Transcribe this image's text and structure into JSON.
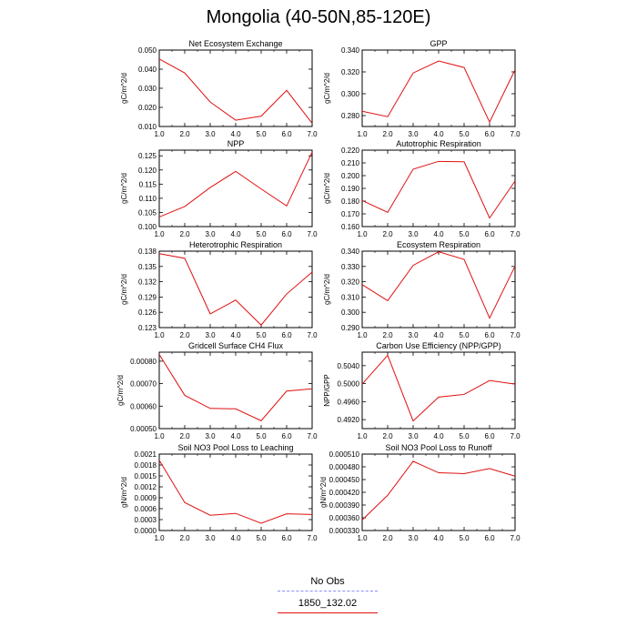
{
  "title": "Mongolia (40-50N,85-120E)",
  "legend": {
    "entries": [
      {
        "label": "No Obs",
        "color": "#8c8cff",
        "style": "dashed"
      },
      {
        "label": "1850_132.02",
        "color": "#e01010",
        "style": "solid"
      }
    ]
  },
  "chart_data": [
    {
      "type": "line",
      "title": "Net Ecosystem Exchange",
      "ylabel": "gC/m^2/d",
      "x": [
        1,
        2,
        3,
        4,
        5,
        6,
        7
      ],
      "xlim": [
        1,
        7
      ],
      "xticks": [
        "1.0",
        "2.0",
        "3.0",
        "4.0",
        "5.0",
        "6.0",
        "7.0"
      ],
      "ylim": [
        0.01,
        0.05
      ],
      "yticks": [
        "0.010",
        "0.020",
        "0.030",
        "0.040",
        "0.050"
      ],
      "ytick_values": [
        0.01,
        0.02,
        0.03,
        0.04,
        0.05
      ],
      "series": [
        {
          "name": "1850_132.02",
          "color": "#e01010",
          "values": [
            0.0453,
            0.038,
            0.0228,
            0.0133,
            0.0154,
            0.0289,
            0.0117
          ]
        }
      ]
    },
    {
      "type": "line",
      "title": "GPP",
      "ylabel": "gC/m^2/d",
      "x": [
        1,
        2,
        3,
        4,
        5,
        6,
        7
      ],
      "xlim": [
        1,
        7
      ],
      "xticks": [
        "1.0",
        "2.0",
        "3.0",
        "4.0",
        "5.0",
        "6.0",
        "7.0"
      ],
      "ylim": [
        0.27,
        0.34
      ],
      "yticks": [
        "0.280",
        "0.300",
        "0.320",
        "0.340"
      ],
      "ytick_values": [
        0.28,
        0.3,
        0.32,
        0.34
      ],
      "series": [
        {
          "name": "1850_132.02",
          "color": "#e01010",
          "values": [
            0.284,
            0.279,
            0.319,
            0.33,
            0.324,
            0.274,
            0.322
          ]
        }
      ]
    },
    {
      "type": "line",
      "title": "NPP",
      "ylabel": "gC/m^2/d",
      "x": [
        1,
        2,
        3,
        4,
        5,
        6,
        7
      ],
      "xlim": [
        1,
        7
      ],
      "xticks": [
        "1.0",
        "2.0",
        "3.0",
        "4.0",
        "5.0",
        "6.0",
        "7.0"
      ],
      "ylim": [
        0.1,
        0.127
      ],
      "yticks": [
        "0.100",
        "0.105",
        "0.110",
        "0.115",
        "0.120",
        "0.125"
      ],
      "ytick_values": [
        0.1,
        0.105,
        0.11,
        0.115,
        0.12,
        0.125
      ],
      "series": [
        {
          "name": "1850_132.02",
          "color": "#e01010",
          "values": [
            0.1034,
            0.1071,
            0.1138,
            0.1195,
            0.1133,
            0.1073,
            0.1263
          ]
        }
      ]
    },
    {
      "type": "line",
      "title": "Autotrophic Respiration",
      "ylabel": "gC/m^2/d",
      "x": [
        1,
        2,
        3,
        4,
        5,
        6,
        7
      ],
      "xlim": [
        1,
        7
      ],
      "xticks": [
        "1.0",
        "2.0",
        "3.0",
        "4.0",
        "5.0",
        "6.0",
        "7.0"
      ],
      "ylim": [
        0.16,
        0.22
      ],
      "yticks": [
        "0.160",
        "0.170",
        "0.180",
        "0.190",
        "0.200",
        "0.210",
        "0.220"
      ],
      "ytick_values": [
        0.16,
        0.17,
        0.18,
        0.19,
        0.2,
        0.21,
        0.22
      ],
      "series": [
        {
          "name": "1850_132.02",
          "color": "#e01010",
          "values": [
            0.1805,
            0.1712,
            0.2051,
            0.2112,
            0.2109,
            0.1667,
            0.1958
          ]
        }
      ]
    },
    {
      "type": "line",
      "title": "Heterotrophic Respiration",
      "ylabel": "gC/m^2/d",
      "x": [
        1,
        2,
        3,
        4,
        5,
        6,
        7
      ],
      "xlim": [
        1,
        7
      ],
      "xticks": [
        "1.0",
        "2.0",
        "3.0",
        "4.0",
        "5.0",
        "6.0",
        "7.0"
      ],
      "ylim": [
        0.123,
        0.138
      ],
      "yticks": [
        "0.123",
        "0.126",
        "0.129",
        "0.132",
        "0.135",
        "0.138"
      ],
      "ytick_values": [
        0.123,
        0.126,
        0.129,
        0.132,
        0.135,
        0.138
      ],
      "series": [
        {
          "name": "1850_132.02",
          "color": "#e01010",
          "values": [
            0.1375,
            0.1366,
            0.1257,
            0.1284,
            0.1235,
            0.1296,
            0.1339
          ]
        }
      ]
    },
    {
      "type": "line",
      "title": "Ecosystem Respiration",
      "ylabel": "gC/m^2/d",
      "x": [
        1,
        2,
        3,
        4,
        5,
        6,
        7
      ],
      "xlim": [
        1,
        7
      ],
      "xticks": [
        "1.0",
        "2.0",
        "3.0",
        "4.0",
        "5.0",
        "6.0",
        "7.0"
      ],
      "ylim": [
        0.29,
        0.34
      ],
      "yticks": [
        "0.290",
        "0.300",
        "0.310",
        "0.320",
        "0.330",
        "0.340"
      ],
      "ytick_values": [
        0.29,
        0.3,
        0.31,
        0.32,
        0.33,
        0.34
      ],
      "series": [
        {
          "name": "1850_132.02",
          "color": "#e01010",
          "values": [
            0.3181,
            0.3076,
            0.3307,
            0.3396,
            0.3346,
            0.2962,
            0.3302
          ]
        }
      ]
    },
    {
      "type": "line",
      "title": "Gridcell Surface CH4 Flux",
      "ylabel": "gC/m^2/d",
      "x": [
        1,
        2,
        3,
        4,
        5,
        6,
        7
      ],
      "xlim": [
        1,
        7
      ],
      "xticks": [
        "1.0",
        "2.0",
        "3.0",
        "4.0",
        "5.0",
        "6.0",
        "7.0"
      ],
      "ylim": [
        0.0005,
        0.00084
      ],
      "yticks": [
        "0.00050",
        "0.00060",
        "0.00070",
        "0.00080"
      ],
      "ytick_values": [
        0.0005,
        0.0006,
        0.0007,
        0.0008
      ],
      "series": [
        {
          "name": "1850_132.02",
          "color": "#e01010",
          "values": [
            0.00083,
            0.000648,
            0.00059,
            0.000588,
            0.000535,
            0.000667,
            0.000677
          ]
        }
      ]
    },
    {
      "type": "line",
      "title": "Carbon Use Efficiency (NPP/GPP)",
      "ylabel": "NPP/GPP",
      "x": [
        1,
        2,
        3,
        4,
        5,
        6,
        7
      ],
      "xlim": [
        1,
        7
      ],
      "xticks": [
        "1.0",
        "2.0",
        "3.0",
        "4.0",
        "5.0",
        "6.0",
        "7.0"
      ],
      "ylim": [
        0.49,
        0.507
      ],
      "yticks": [
        "0.4920",
        "0.4960",
        "0.5000",
        "0.5040"
      ],
      "ytick_values": [
        0.492,
        0.496,
        0.5,
        0.504
      ],
      "series": [
        {
          "name": "1850_132.02",
          "color": "#e01010",
          "values": [
            0.4999,
            0.5063,
            0.4917,
            0.497,
            0.4976,
            0.5007,
            0.4999
          ]
        }
      ]
    },
    {
      "type": "line",
      "title": "Soil NO3 Pool Loss to Leaching",
      "ylabel": "gN/m^2/d",
      "x": [
        1,
        2,
        3,
        4,
        5,
        6,
        7
      ],
      "xlim": [
        1,
        7
      ],
      "xticks": [
        "1.0",
        "2.0",
        "3.0",
        "4.0",
        "5.0",
        "6.0",
        "7.0"
      ],
      "ylim": [
        0.0,
        0.0021
      ],
      "yticks": [
        "0.0000",
        "0.0003",
        "0.0006",
        "0.0009",
        "0.0012",
        "0.0015",
        "0.0018",
        "0.0021"
      ],
      "ytick_values": [
        0.0,
        0.0003,
        0.0006,
        0.0009,
        0.0012,
        0.0015,
        0.0018,
        0.0021
      ],
      "series": [
        {
          "name": "1850_132.02",
          "color": "#e01010",
          "values": [
            0.00193,
            0.00077,
            0.00042,
            0.00047,
            0.0002,
            0.00046,
            0.00044
          ]
        }
      ]
    },
    {
      "type": "line",
      "title": "Soil NO3 Pool Loss to Runoff",
      "ylabel": "gN/m^2/d",
      "x": [
        1,
        2,
        3,
        4,
        5,
        6,
        7
      ],
      "xlim": [
        1,
        7
      ],
      "xticks": [
        "1.0",
        "2.0",
        "3.0",
        "4.0",
        "5.0",
        "6.0",
        "7.0"
      ],
      "ylim": [
        0.00033,
        0.00051
      ],
      "yticks": [
        "0.000330",
        "0.000360",
        "0.000390",
        "0.000420",
        "0.000450",
        "0.000480",
        "0.000510"
      ],
      "ytick_values": [
        0.00033,
        0.00036,
        0.00039,
        0.00042,
        0.00045,
        0.00048,
        0.00051
      ],
      "series": [
        {
          "name": "1850_132.02",
          "color": "#e01010",
          "values": [
            0.000355,
            0.000413,
            0.000493,
            0.000466,
            0.000464,
            0.000476,
            0.000458
          ]
        }
      ]
    }
  ]
}
